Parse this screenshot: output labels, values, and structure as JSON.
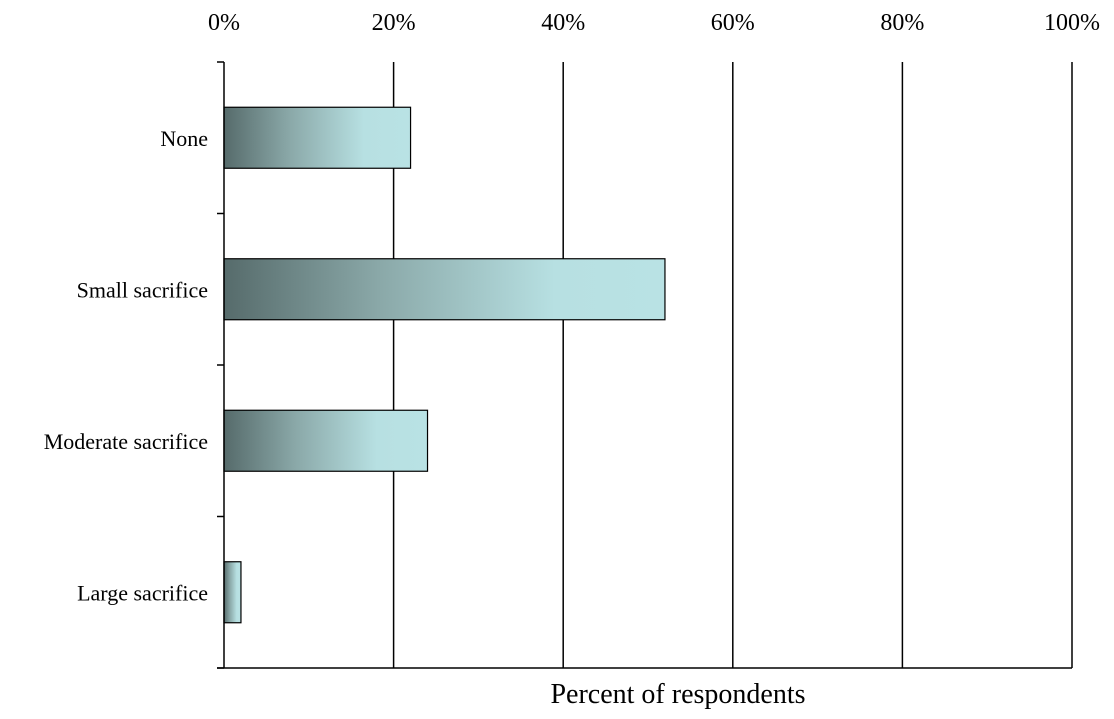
{
  "chart_data": {
    "type": "bar",
    "orientation": "horizontal",
    "categories": [
      "None",
      "Small sacrifice",
      "Moderate sacrifice",
      "Large sacrifice"
    ],
    "values": [
      22,
      52,
      24,
      2
    ],
    "xlabel": "Percent of respondents",
    "ylabel": "",
    "xlim": [
      0,
      100
    ],
    "x_ticks": [
      0,
      20,
      40,
      60,
      80,
      100
    ],
    "x_tick_labels": [
      "0%",
      "20%",
      "40%",
      "60%",
      "80%",
      "100%"
    ],
    "x_axis_position": "top",
    "grid": "vertical",
    "legend": "none",
    "bar_gradient": [
      "#566b6b",
      "#8aa8a8",
      "#b7e0e2",
      "#b9e2e4"
    ]
  }
}
